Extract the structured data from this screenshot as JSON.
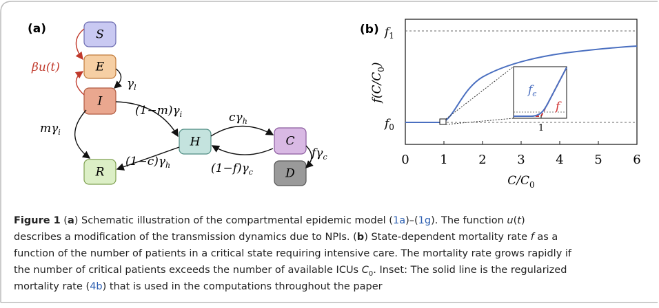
{
  "panel_a": {
    "tag": "(a)",
    "nodes": [
      {
        "label": "S"
      },
      {
        "label": "E"
      },
      {
        "label": "I"
      },
      {
        "label": "H"
      },
      {
        "label": "C"
      },
      {
        "label": "D"
      },
      {
        "label": "R"
      }
    ],
    "edges": [
      {
        "label": "βu(t)",
        "sub": ""
      },
      {
        "label": "γ",
        "sub": "l"
      },
      {
        "label": "(1−m)γ",
        "sub": "i"
      },
      {
        "label": "mγ",
        "sub": "i"
      },
      {
        "label": "cγ",
        "sub": "h"
      },
      {
        "label": "(1−c)γ",
        "sub": "h"
      },
      {
        "label": "(1−f)γ",
        "sub": "c"
      },
      {
        "label": "fγ",
        "sub": "c"
      }
    ]
  },
  "panel_b": {
    "tag": "(b)",
    "xlabel": "C/C",
    "xlabel_sub": "0",
    "ylabel": "f(C/C",
    "ylabel_sub": "0",
    "ylabel_end": ")",
    "xlim": [
      0,
      6
    ],
    "xticks": [
      0,
      1,
      2,
      3,
      4,
      5,
      6
    ],
    "f1": "f",
    "f1_sub": "1",
    "f0": "f",
    "f0_sub": "0",
    "inset": {
      "smooth": "f",
      "smooth_sub": "ϵ",
      "sharp": "f",
      "tick": "1"
    }
  },
  "caption": [
    [
      {
        "text": "Figure 1",
        "style": "b"
      },
      {
        "text": "  (",
        "style": ""
      },
      {
        "text": "a",
        "style": "b"
      },
      {
        "text": ") Schematic illustration of the compartmental epidemic model (",
        "style": ""
      },
      {
        "text": "1a",
        "style": "link"
      },
      {
        "text": ")–(",
        "style": ""
      },
      {
        "text": "1g",
        "style": "link"
      },
      {
        "text": "). The function ",
        "style": ""
      },
      {
        "text": "u",
        "style": "i"
      },
      {
        "text": "(",
        "style": ""
      },
      {
        "text": "t",
        "style": "i"
      },
      {
        "text": ")",
        "style": ""
      }
    ],
    [
      {
        "text": "describes a modification of the transmission dynamics due to NPIs. (",
        "style": ""
      },
      {
        "text": "b",
        "style": "b"
      },
      {
        "text": ") State-dependent mortality rate ",
        "style": ""
      },
      {
        "text": "f",
        "style": "i"
      },
      {
        "text": " as a",
        "style": ""
      }
    ],
    [
      {
        "text": "function of the number of patients in a critical state requiring intensive care. The mortality rate grows rapidly if",
        "style": ""
      }
    ],
    [
      {
        "text": "the number of critical patients exceeds the number of available ICUs ",
        "style": ""
      },
      {
        "text": "C",
        "style": "i"
      },
      {
        "text": "0",
        "style": "sub"
      },
      {
        "text": ". Inset: The solid line is the regularized",
        "style": ""
      }
    ],
    [
      {
        "text": "mortality rate (",
        "style": ""
      },
      {
        "text": "4b",
        "style": "link"
      },
      {
        "text": ") that is used in the computations throughout the paper",
        "style": ""
      }
    ]
  ]
}
